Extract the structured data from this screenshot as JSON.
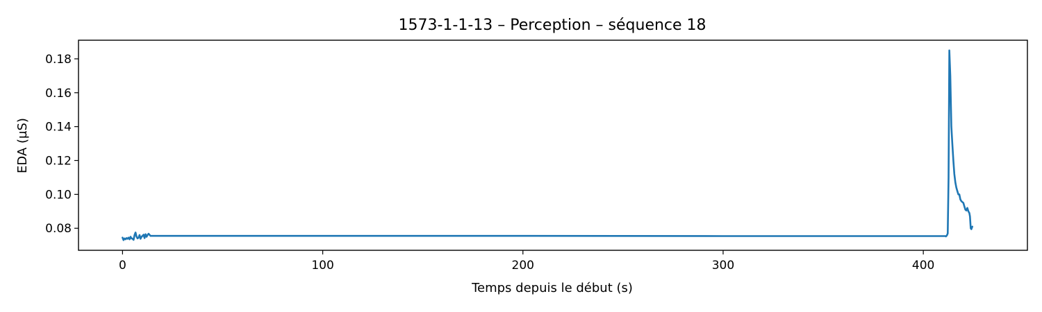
{
  "chart_data": {
    "type": "line",
    "title": "1573-1-1-13 – Perception – séquence 18",
    "xlabel": "Temps depuis le début (s)",
    "ylabel": "EDA (µS)",
    "xlim": [
      -22,
      452
    ],
    "ylim": [
      0.067,
      0.191
    ],
    "x_ticks": [
      0,
      100,
      200,
      300,
      400
    ],
    "y_ticks": [
      0.08,
      0.1,
      0.12,
      0.14,
      0.16,
      0.18
    ],
    "x_tick_labels": [
      "0",
      "100",
      "200",
      "300",
      "400"
    ],
    "y_tick_labels": [
      "0.08",
      "0.10",
      "0.12",
      "0.14",
      "0.16",
      "0.18"
    ],
    "grid": false,
    "series": [
      {
        "color": "#1f77b4",
        "x": [
          0,
          0.5,
          1,
          1.5,
          2,
          2.5,
          3,
          3.5,
          4,
          4.5,
          5,
          5.5,
          6,
          6.5,
          7,
          7.5,
          8,
          8.5,
          9,
          9.5,
          10,
          10.5,
          11,
          11.5,
          12,
          12.5,
          13,
          14,
          20,
          50,
          100,
          200,
          300,
          400,
          410,
          411,
          411.3,
          411.8,
          412.2,
          412.6,
          413,
          413.5,
          414,
          414.5,
          415,
          415.5,
          416,
          416.5,
          417,
          417.5,
          418,
          418.5,
          419,
          419.5,
          420,
          420.5,
          421,
          421.5,
          422,
          422.5,
          423,
          423.3,
          423.7,
          424,
          424.5
        ],
        "y": [
          0.0745,
          0.073,
          0.074,
          0.0735,
          0.0742,
          0.0738,
          0.0745,
          0.0735,
          0.075,
          0.074,
          0.0738,
          0.0732,
          0.076,
          0.0775,
          0.075,
          0.074,
          0.0745,
          0.076,
          0.0738,
          0.075,
          0.0755,
          0.0762,
          0.0742,
          0.0765,
          0.075,
          0.076,
          0.0768,
          0.0755,
          0.0755,
          0.0755,
          0.0755,
          0.0755,
          0.0754,
          0.0754,
          0.0754,
          0.0754,
          0.0752,
          0.0758,
          0.077,
          0.11,
          0.185,
          0.17,
          0.14,
          0.13,
          0.12,
          0.112,
          0.107,
          0.104,
          0.102,
          0.1,
          0.1,
          0.097,
          0.096,
          0.0955,
          0.095,
          0.093,
          0.091,
          0.0905,
          0.092,
          0.09,
          0.089,
          0.087,
          0.08,
          0.0795,
          0.081
        ]
      }
    ]
  }
}
